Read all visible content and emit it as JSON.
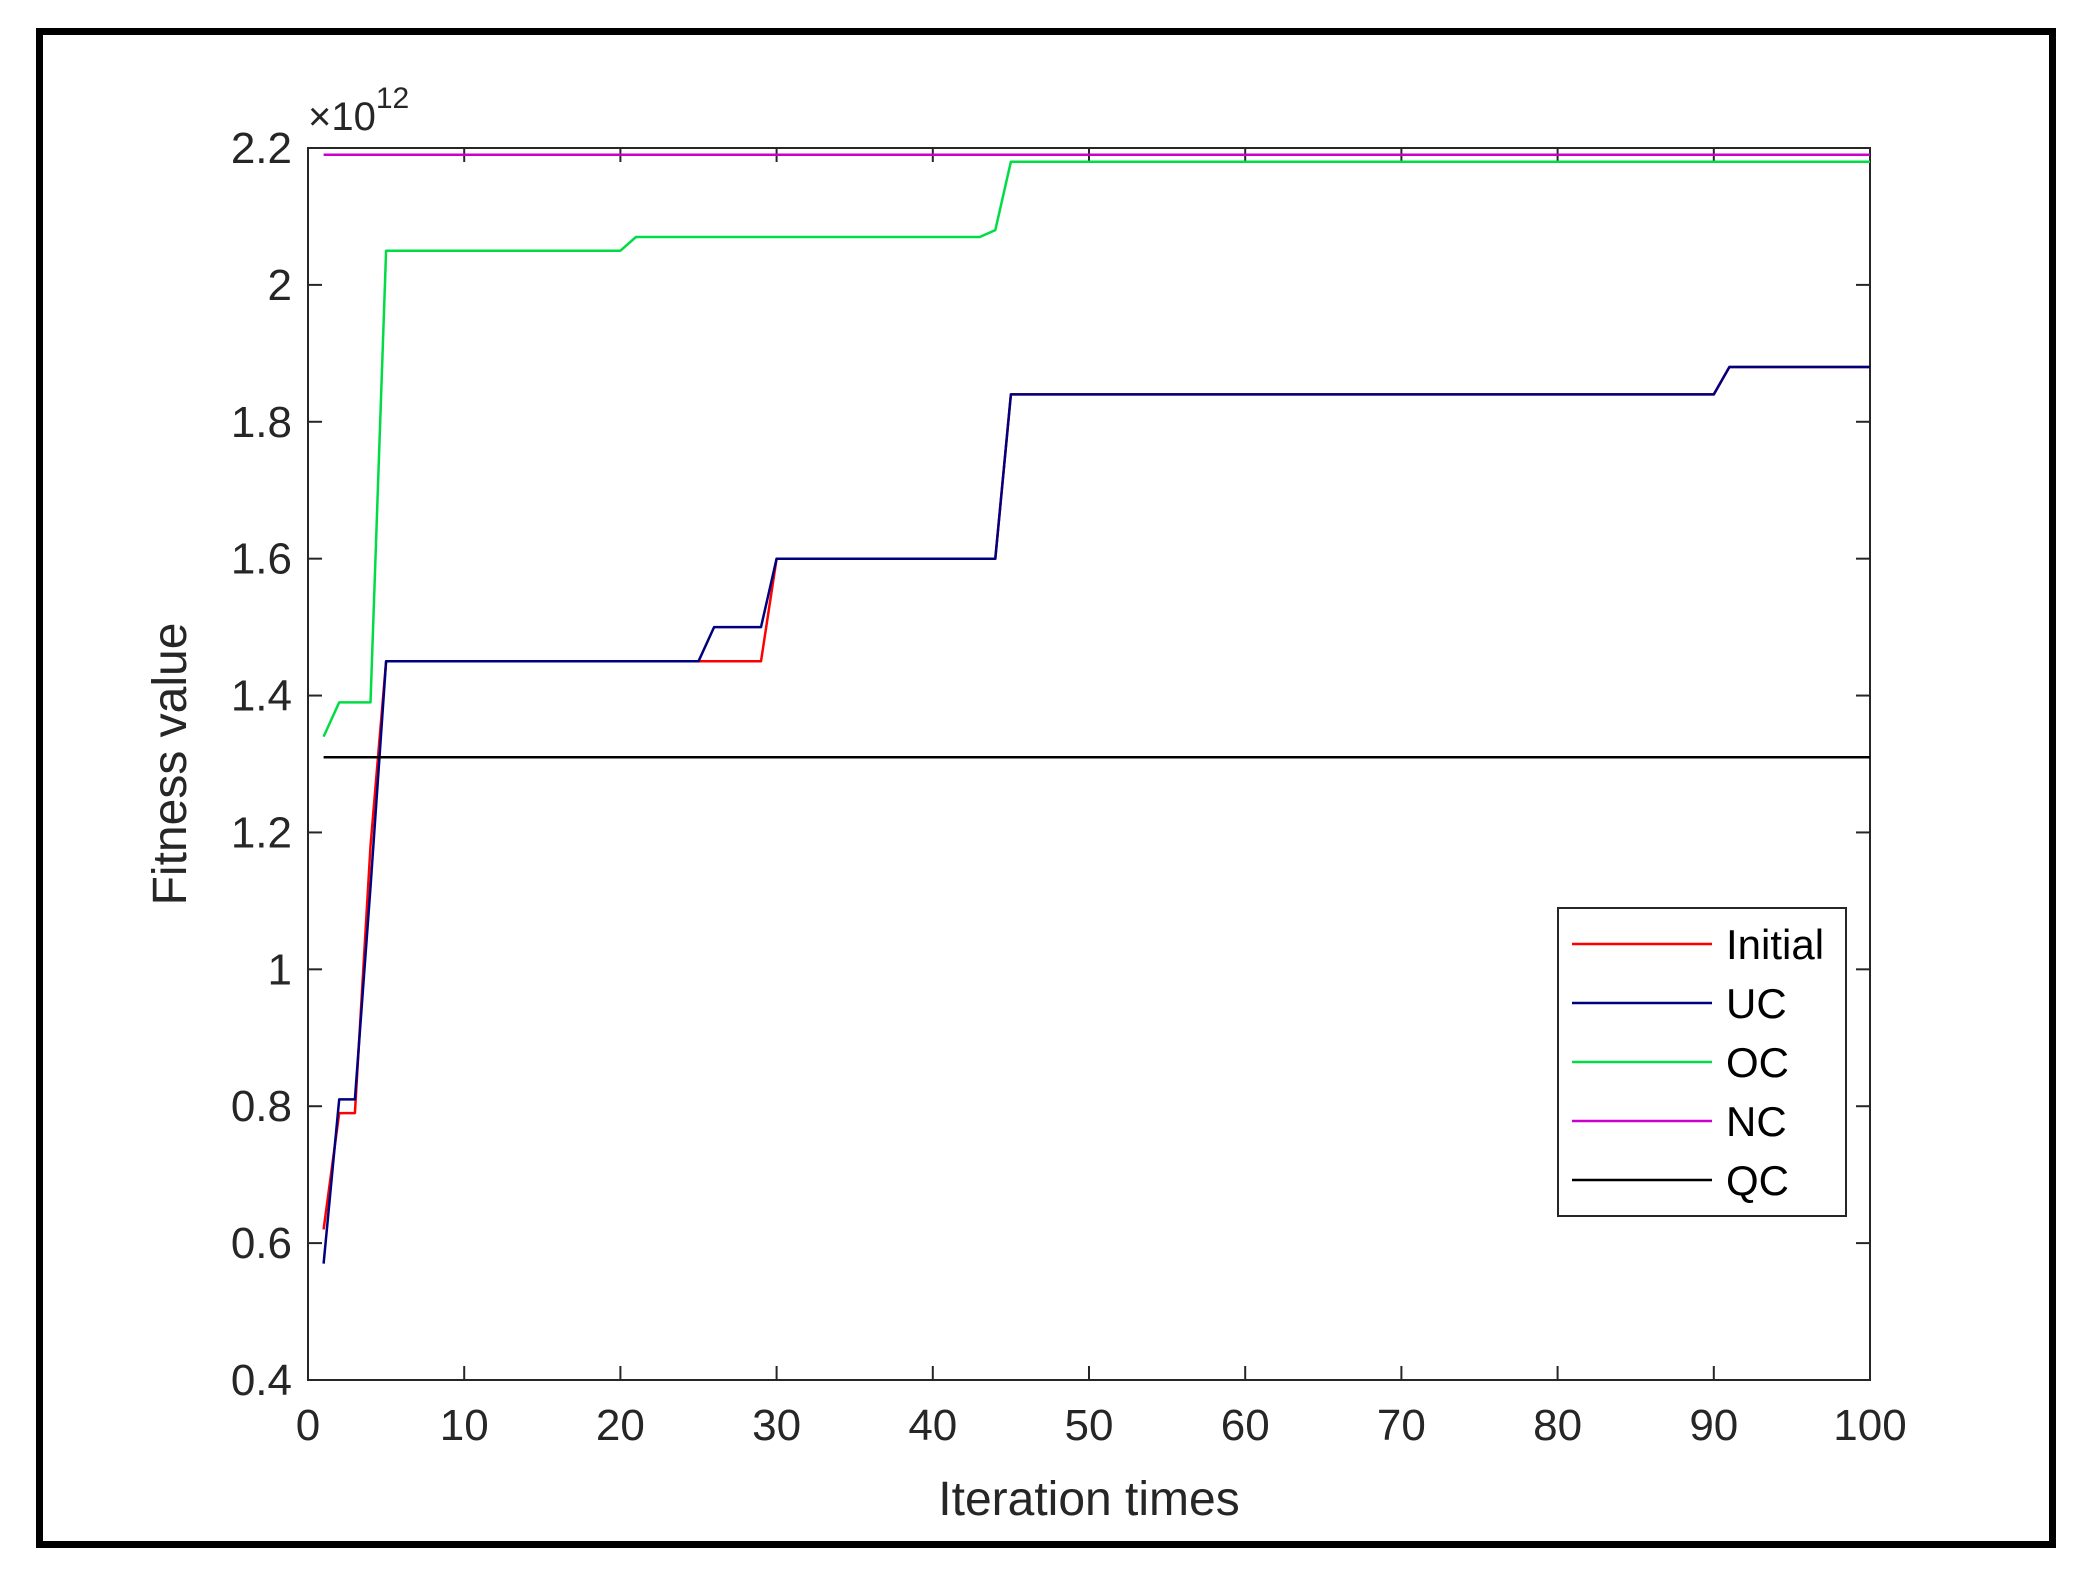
{
  "chart_data": {
    "type": "line",
    "title": "",
    "xlabel": "Iteration times",
    "ylabel": "Fitness value",
    "y_multiplier_label": "×10",
    "y_multiplier_exponent": "12",
    "xlim": [
      0,
      100
    ],
    "ylim": [
      0.4,
      2.2
    ],
    "xticks": [
      0,
      10,
      20,
      30,
      40,
      50,
      60,
      70,
      80,
      90,
      100
    ],
    "xtick_labels": [
      "0",
      "10",
      "20",
      "30",
      "40",
      "50",
      "60",
      "70",
      "80",
      "90",
      "100"
    ],
    "yticks": [
      0.4,
      0.6,
      0.8,
      1.0,
      1.2,
      1.4,
      1.6,
      1.8,
      2.0,
      2.2
    ],
    "ytick_labels": [
      "0.4",
      "0.6",
      "0.8",
      "1",
      "1.2",
      "1.4",
      "1.6",
      "1.8",
      "2",
      "2.2"
    ],
    "grid": false,
    "legend_position": "lower-right",
    "series": [
      {
        "name": "Initial",
        "color": "#ff0000",
        "points": [
          [
            1,
            0.62
          ],
          [
            2,
            0.79
          ],
          [
            3,
            0.79
          ],
          [
            4,
            1.18
          ],
          [
            5,
            1.45
          ],
          [
            25,
            1.45
          ],
          [
            29,
            1.45
          ],
          [
            30,
            1.6
          ],
          [
            44,
            1.6
          ],
          [
            45,
            1.84
          ],
          [
            90,
            1.84
          ],
          [
            91,
            1.88
          ],
          [
            100,
            1.88
          ]
        ]
      },
      {
        "name": "UC",
        "color": "#00007f",
        "points": [
          [
            1,
            0.57
          ],
          [
            2,
            0.81
          ],
          [
            3,
            0.81
          ],
          [
            4,
            1.12
          ],
          [
            5,
            1.45
          ],
          [
            25,
            1.45
          ],
          [
            26,
            1.5
          ],
          [
            29,
            1.5
          ],
          [
            30,
            1.6
          ],
          [
            44,
            1.6
          ],
          [
            45,
            1.84
          ],
          [
            90,
            1.84
          ],
          [
            91,
            1.88
          ],
          [
            100,
            1.88
          ]
        ]
      },
      {
        "name": "OC",
        "color": "#00dd44",
        "points": [
          [
            1,
            1.34
          ],
          [
            2,
            1.39
          ],
          [
            4,
            1.39
          ],
          [
            5,
            2.05
          ],
          [
            20,
            2.05
          ],
          [
            21,
            2.07
          ],
          [
            43,
            2.07
          ],
          [
            44,
            2.08
          ],
          [
            45,
            2.18
          ],
          [
            100,
            2.18
          ]
        ]
      },
      {
        "name": "NC",
        "color": "#cc00cc",
        "points": [
          [
            1,
            2.19
          ],
          [
            100,
            2.19
          ]
        ]
      },
      {
        "name": "QC",
        "color": "#000000",
        "points": [
          [
            1,
            1.31
          ],
          [
            100,
            1.31
          ]
        ]
      }
    ]
  }
}
